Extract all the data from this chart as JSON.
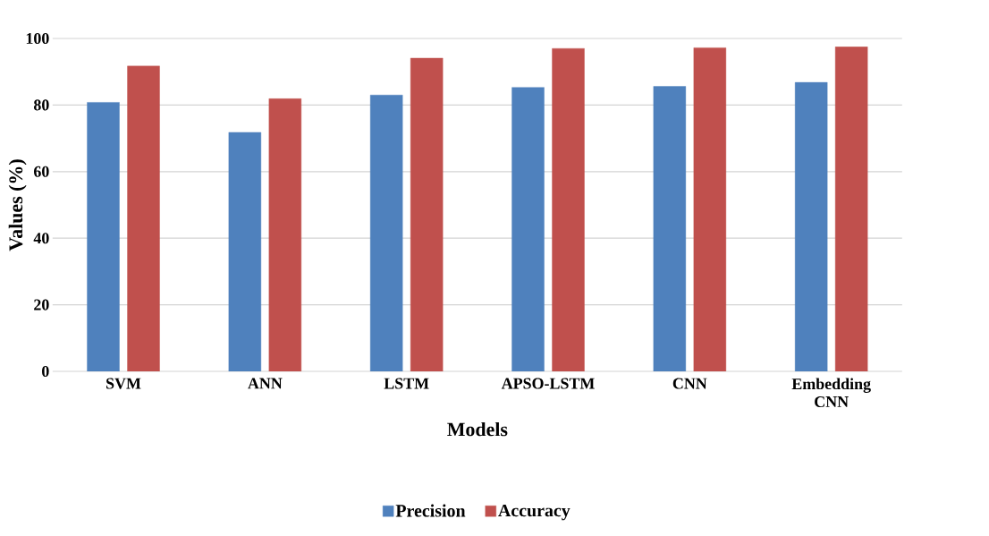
{
  "chart_data": {
    "type": "bar",
    "xlabel": "Models",
    "ylabel": "Values (%)",
    "categories": [
      "SVM",
      "ANN",
      "LSTM",
      "APSO-LSTM",
      "CNN",
      "Embedding CNN"
    ],
    "series": [
      {
        "name": "Precision",
        "color": "#4f81bd",
        "values": [
          80.8,
          71.8,
          83.0,
          85.3,
          85.6,
          86.8
        ]
      },
      {
        "name": "Accuracy",
        "color": "#c0504d",
        "values": [
          91.7,
          81.9,
          94.1,
          97.0,
          97.2,
          97.5
        ]
      }
    ],
    "ylim": [
      0,
      100
    ],
    "yticks": [
      0,
      20,
      40,
      60,
      80,
      100
    ],
    "grid": "y",
    "legend": "bottom"
  }
}
